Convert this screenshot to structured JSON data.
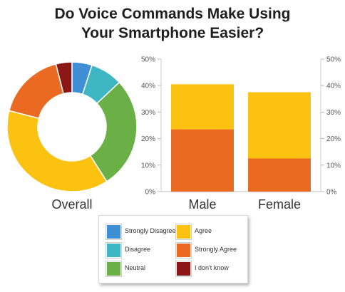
{
  "chart_data": [
    {
      "type": "pie",
      "title": "Do Voice Commands Make Using Your Smartphone Easier?",
      "category_label": "Overall",
      "slices": [
        {
          "label": "Strongly Disagree",
          "value": 5,
          "color": "#3f8fd6"
        },
        {
          "label": "Disagree",
          "value": 8,
          "color": "#3fb6c4"
        },
        {
          "label": "Neutral",
          "value": 28,
          "color": "#6ab046"
        },
        {
          "label": "Agree",
          "value": 38,
          "color": "#fcc212"
        },
        {
          "label": "Strongly Agree",
          "value": 17,
          "color": "#ea6a23"
        },
        {
          "label": "I don't know",
          "value": 4,
          "color": "#8c1717"
        }
      ]
    },
    {
      "type": "bar",
      "stacked": true,
      "categories": [
        "Male",
        "Female"
      ],
      "series": [
        {
          "name": "Strongly Agree",
          "values": [
            23.5,
            12.5
          ],
          "color": "#ea6a23"
        },
        {
          "name": "Agree",
          "values": [
            17,
            25
          ],
          "color": "#fcc212"
        }
      ],
      "ylim": [
        0,
        50
      ],
      "yticks": [
        "0%",
        "10%",
        "20%",
        "30%",
        "40%",
        "50%"
      ],
      "grid": false
    }
  ],
  "title_lines": [
    "Do Voice Commands Make Using",
    "Your Smartphone Easier?"
  ],
  "legend": [
    {
      "label": "Strongly Disagree",
      "color": "#3f8fd6"
    },
    {
      "label": "Agree",
      "color": "#fcc212"
    },
    {
      "label": "Disagree",
      "color": "#3fb6c4"
    },
    {
      "label": "Strongly Agree",
      "color": "#ea6a23"
    },
    {
      "label": "Neutral",
      "color": "#6ab046"
    },
    {
      "label": "I don't know",
      "color": "#8c1717"
    }
  ]
}
